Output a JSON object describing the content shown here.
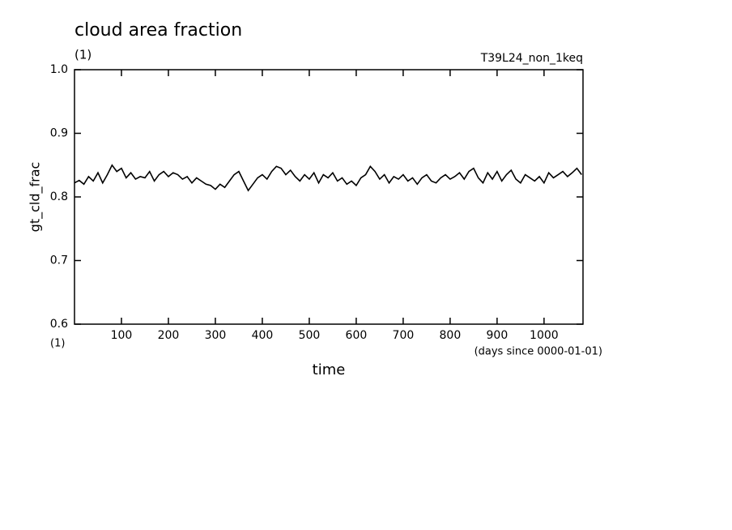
{
  "chart_data": {
    "type": "line",
    "title": "cloud area fraction",
    "subtitle": "(1)",
    "annotation": "T39L24_non_1keq",
    "ylabel": "gt_cld_frac",
    "yunits": "(1)",
    "xlabel": "time",
    "xunits": "(days since 0000-01-01)",
    "xlim": [
      0,
      1083
    ],
    "ylim": [
      0.6,
      1
    ],
    "xticks": [
      100,
      200,
      300,
      400,
      500,
      600,
      700,
      800,
      900,
      1000
    ],
    "yticks": [
      0.6,
      0.7,
      0.8,
      0.9,
      {
        "value": 1,
        "label": "1.0"
      }
    ],
    "color": "#000000",
    "x": [
      0,
      10,
      20,
      30,
      40,
      50,
      60,
      70,
      80,
      90,
      100,
      110,
      120,
      130,
      140,
      150,
      160,
      170,
      180,
      190,
      200,
      210,
      220,
      230,
      240,
      250,
      260,
      270,
      280,
      290,
      300,
      310,
      320,
      330,
      340,
      350,
      360,
      370,
      380,
      390,
      400,
      410,
      420,
      430,
      440,
      450,
      460,
      470,
      480,
      490,
      500,
      510,
      520,
      530,
      540,
      550,
      560,
      570,
      580,
      590,
      600,
      610,
      620,
      630,
      640,
      650,
      660,
      670,
      680,
      690,
      700,
      710,
      720,
      730,
      740,
      750,
      760,
      770,
      780,
      790,
      800,
      810,
      820,
      830,
      840,
      850,
      860,
      870,
      880,
      890,
      900,
      910,
      920,
      930,
      940,
      950,
      960,
      970,
      980,
      990,
      1000,
      1010,
      1020,
      1030,
      1040,
      1050,
      1060,
      1070,
      1080
    ],
    "values": [
      0.822,
      0.826,
      0.82,
      0.832,
      0.825,
      0.838,
      0.822,
      0.835,
      0.85,
      0.84,
      0.845,
      0.83,
      0.838,
      0.828,
      0.832,
      0.83,
      0.84,
      0.825,
      0.835,
      0.84,
      0.832,
      0.838,
      0.835,
      0.828,
      0.832,
      0.822,
      0.83,
      0.825,
      0.82,
      0.818,
      0.812,
      0.82,
      0.815,
      0.825,
      0.835,
      0.84,
      0.825,
      0.81,
      0.82,
      0.83,
      0.835,
      0.828,
      0.84,
      0.848,
      0.845,
      0.835,
      0.842,
      0.832,
      0.825,
      0.835,
      0.828,
      0.838,
      0.822,
      0.835,
      0.83,
      0.838,
      0.825,
      0.83,
      0.82,
      0.825,
      0.818,
      0.83,
      0.835,
      0.848,
      0.84,
      0.828,
      0.835,
      0.822,
      0.832,
      0.828,
      0.835,
      0.825,
      0.83,
      0.82,
      0.83,
      0.835,
      0.825,
      0.822,
      0.83,
      0.835,
      0.828,
      0.832,
      0.838,
      0.828,
      0.84,
      0.845,
      0.83,
      0.822,
      0.838,
      0.828,
      0.84,
      0.825,
      0.835,
      0.842,
      0.828,
      0.822,
      0.835,
      0.83,
      0.825,
      0.832,
      0.822,
      0.838,
      0.83,
      0.835,
      0.84,
      0.832,
      0.838,
      0.845,
      0.835
    ]
  }
}
